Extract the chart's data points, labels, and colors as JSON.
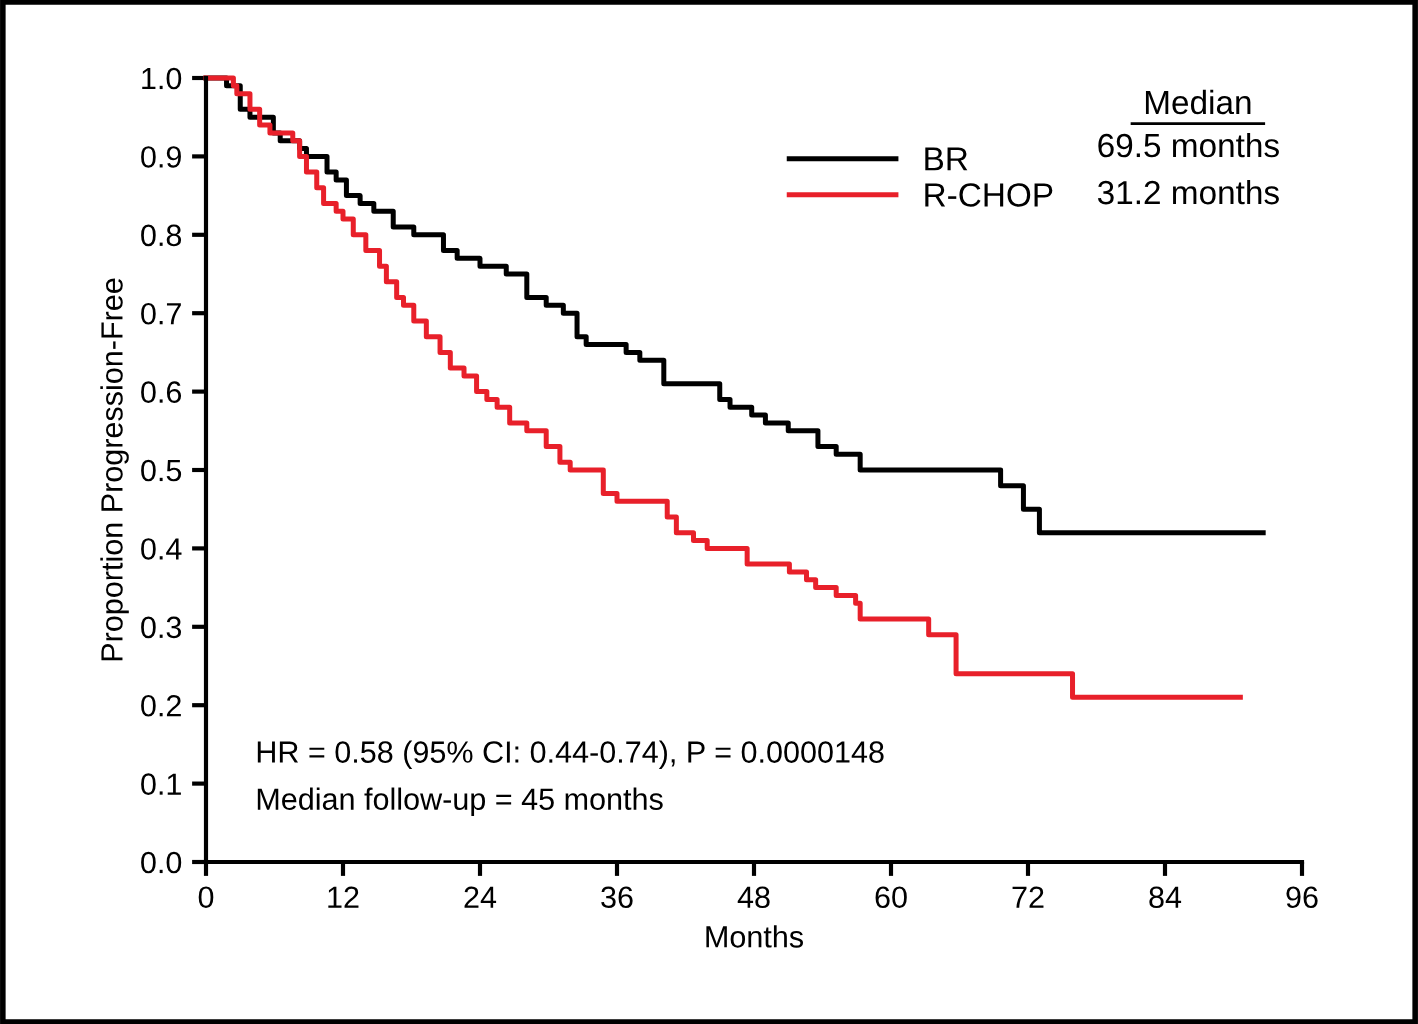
{
  "chart_data": {
    "type": "step",
    "xlabel": "Months",
    "ylabel": "Proportion Progression-Free",
    "xlim": [
      0,
      96
    ],
    "xticks": [
      0,
      12,
      24,
      36,
      48,
      60,
      72,
      84,
      96
    ],
    "ylim": [
      0,
      1.0
    ],
    "yticks": [
      {
        "value": 0,
        "label": "0.0"
      },
      0.1,
      0.2,
      0.3,
      0.4,
      0.5,
      0.6,
      0.7,
      0.8,
      0.9,
      {
        "value": 1,
        "label": "1.0"
      }
    ],
    "grid": false,
    "legend": "top right",
    "line_style": "solid",
    "marker": "none",
    "series": [
      {
        "name": "BR",
        "color": "#000000",
        "x": [
          0,
          1.8,
          3.0,
          3.85,
          5.9,
          6.5,
          8.2,
          8.8,
          10.6,
          11.4,
          12.3,
          13.5,
          14.7,
          16.4,
          18.2,
          20.8,
          22,
          24,
          26.3,
          28.1,
          29.8,
          31.3,
          32.5,
          33.3,
          36.8,
          38,
          40.1,
          45,
          45.9,
          47.8,
          49,
          51,
          53.6,
          55.2,
          57.3,
          69.6,
          71.6,
          73,
          92.6
        ],
        "values": [
          1.0,
          0.99,
          0.96,
          0.95,
          0.93,
          0.92,
          0.91,
          0.9,
          0.88,
          0.87,
          0.85,
          0.84,
          0.83,
          0.81,
          0.8,
          0.78,
          0.77,
          0.76,
          0.75,
          0.72,
          0.71,
          0.7,
          0.67,
          0.66,
          0.65,
          0.64,
          0.61,
          0.59,
          0.58,
          0.57,
          0.56,
          0.55,
          0.53,
          0.52,
          0.5,
          0.48,
          0.45,
          0.42,
          0.42
        ]
      },
      {
        "name": "R-CHOP",
        "color": "#e8202a",
        "x": [
          0,
          2.4,
          2.7,
          3.85,
          4.7,
          5.6,
          7.6,
          8.2,
          8.8,
          9.7,
          10.3,
          11.4,
          12,
          12.9,
          14,
          15.2,
          15.8,
          16.7,
          17.3,
          18.2,
          19.3,
          20.5,
          21.4,
          22.6,
          23.7,
          24.6,
          25.5,
          26.6,
          28.1,
          29.8,
          31,
          31.9,
          34.8,
          36,
          40.4,
          41.2,
          42.7,
          43.9,
          47.4,
          51.1,
          52.6,
          53.4,
          55.2,
          56.9,
          57.3,
          63.3,
          65.7,
          75.9,
          90.6
        ],
        "values": [
          1.0,
          0.99,
          0.98,
          0.96,
          0.94,
          0.93,
          0.92,
          0.9,
          0.88,
          0.86,
          0.84,
          0.83,
          0.82,
          0.8,
          0.78,
          0.76,
          0.74,
          0.72,
          0.71,
          0.69,
          0.67,
          0.65,
          0.63,
          0.62,
          0.6,
          0.59,
          0.58,
          0.56,
          0.55,
          0.53,
          0.51,
          0.5,
          0.47,
          0.46,
          0.44,
          0.42,
          0.41,
          0.4,
          0.38,
          0.37,
          0.36,
          0.35,
          0.34,
          0.33,
          0.31,
          0.29,
          0.24,
          0.21,
          0.21
        ]
      }
    ],
    "annotations": [
      "Median",
      "69.5 months",
      "31.2 months",
      "HR = 0.58 (95% CI: 0.44-0.74), P = 0.0000148",
      "Median follow-up = 45 months"
    ]
  }
}
